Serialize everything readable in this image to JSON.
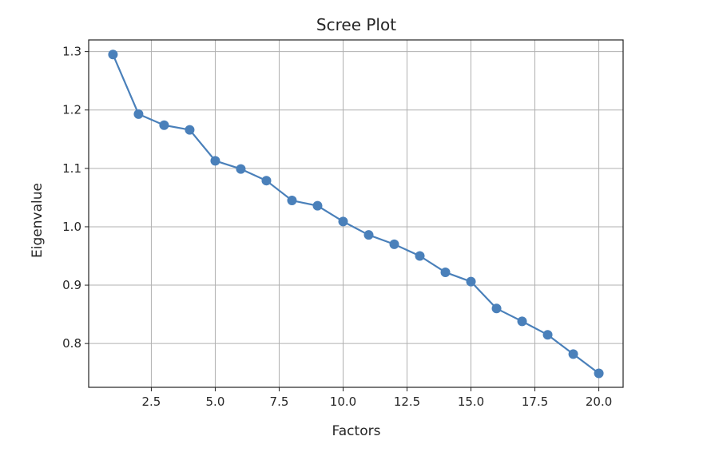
{
  "chart_data": {
    "type": "line",
    "title": "Scree Plot",
    "xlabel": "Factors",
    "ylabel": "Eigenvalue",
    "xlim": [
      0.05,
      20.95
    ],
    "ylim": [
      0.725,
      1.32
    ],
    "x_ticks": [
      2.5,
      5.0,
      7.5,
      10.0,
      12.5,
      15.0,
      17.5,
      20.0
    ],
    "x_tick_labels": [
      "2.5",
      "5.0",
      "7.5",
      "10.0",
      "12.5",
      "15.0",
      "17.5",
      "20.0"
    ],
    "y_ticks": [
      0.8,
      0.9,
      1.0,
      1.1,
      1.2,
      1.3
    ],
    "y_tick_labels": [
      "0.8",
      "0.9",
      "1.0",
      "1.1",
      "1.2",
      "1.3"
    ],
    "grid": true,
    "legend": "none",
    "series": [
      {
        "color": "#4a80ba",
        "x": [
          1,
          2,
          3,
          4,
          5,
          6,
          7,
          8,
          9,
          10,
          11,
          12,
          13,
          14,
          15,
          16,
          17,
          18,
          19,
          20
        ],
        "values": [
          1.295,
          1.193,
          1.174,
          1.166,
          1.113,
          1.099,
          1.079,
          1.045,
          1.036,
          1.009,
          0.986,
          0.97,
          0.95,
          0.922,
          0.906,
          0.86,
          0.838,
          0.815,
          0.782,
          0.749
        ]
      }
    ]
  }
}
